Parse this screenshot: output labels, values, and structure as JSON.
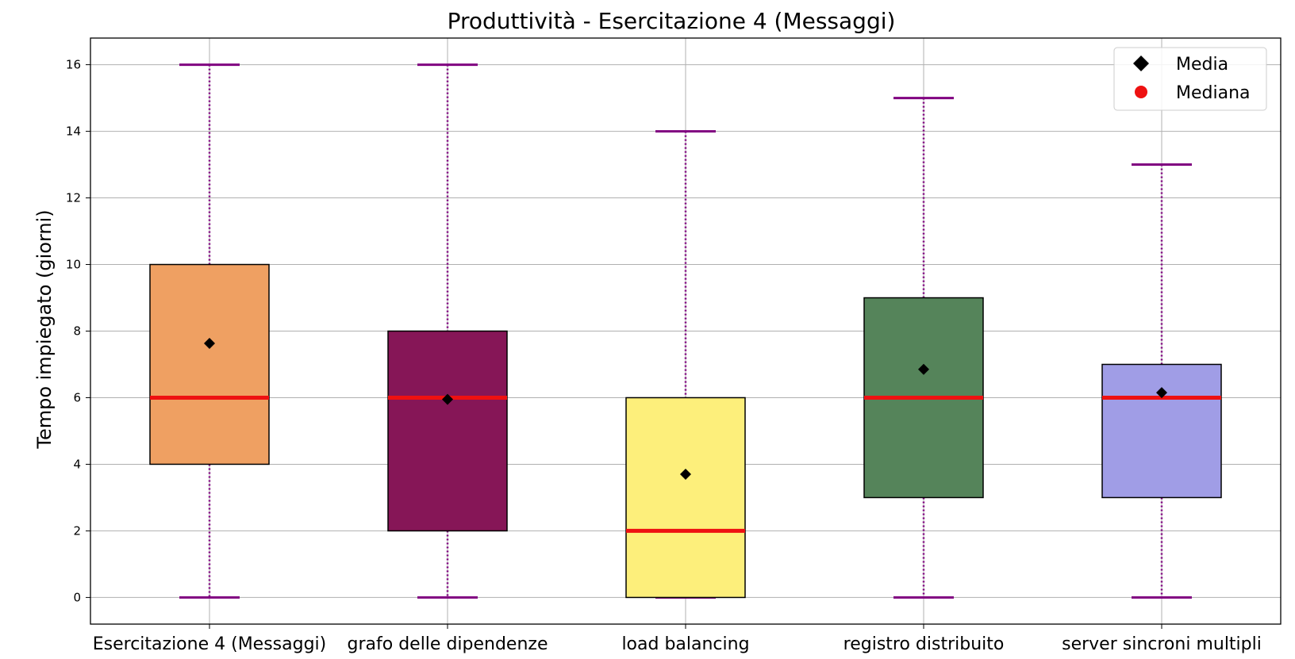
{
  "chart_data": {
    "type": "box",
    "title": "Produttività - Esercitazione 4 (Messaggi)",
    "xlabel": "",
    "ylabel": "Tempo impiegato (giorni)",
    "ylim": [
      -0.8,
      16.8
    ],
    "yticks": [
      0,
      2,
      4,
      6,
      8,
      10,
      12,
      14,
      16
    ],
    "grid": true,
    "legend": {
      "placement": "top-right",
      "entries": [
        {
          "label": "Media",
          "marker": "diamond",
          "color": "#000000"
        },
        {
          "label": "Mediana",
          "marker": "circle",
          "color": "#ee1111"
        }
      ]
    },
    "colors": {
      "median": "#ee1111",
      "whisker": "#800080",
      "mean": "#000000",
      "grid": "#b0b0b0"
    },
    "categories": [
      "Esercitazione 4 (Messaggi)",
      "grafo delle dipendenze",
      "load balancing",
      "registro distribuito",
      "server sincroni multipli"
    ],
    "boxes": [
      {
        "min": 0,
        "q1": 4,
        "median": 6,
        "q3": 10,
        "max": 16,
        "mean": 7.63,
        "color": "#efa062"
      },
      {
        "min": 0,
        "q1": 2,
        "median": 6,
        "q3": 8,
        "max": 16,
        "mean": 5.95,
        "color": "#861657"
      },
      {
        "min": 0,
        "q1": 0,
        "median": 2,
        "q3": 6,
        "max": 14,
        "mean": 3.7,
        "color": "#fdef7b"
      },
      {
        "min": 0,
        "q1": 3,
        "median": 6,
        "q3": 9,
        "max": 15,
        "mean": 6.85,
        "color": "#55845a"
      },
      {
        "min": 0,
        "q1": 3,
        "median": 6,
        "q3": 7,
        "max": 13,
        "mean": 6.15,
        "color": "#a09de6"
      }
    ]
  }
}
